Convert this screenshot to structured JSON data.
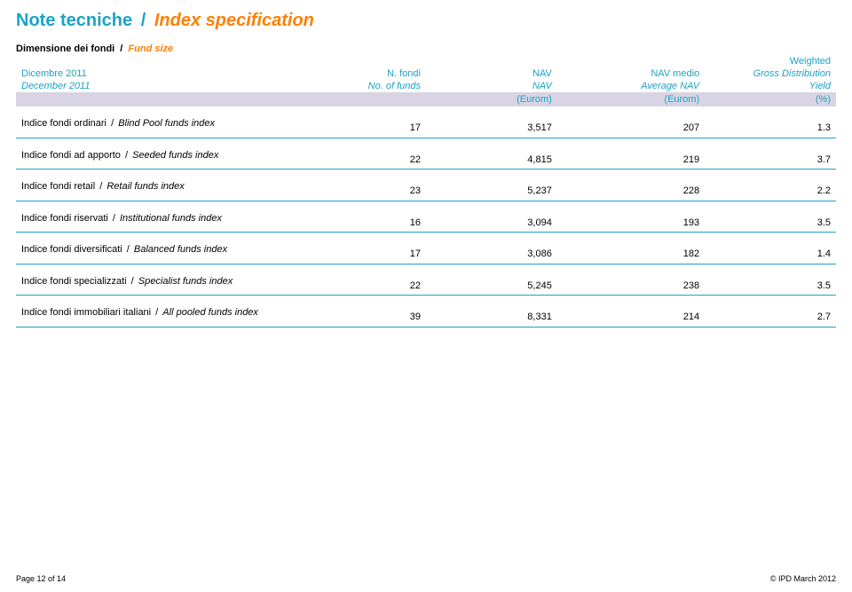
{
  "title": {
    "it": "Note tecniche",
    "sep": "/",
    "en": "Index specification"
  },
  "subheading": {
    "it": "Dimensione dei fondi",
    "sep": "/",
    "en": "Fund size"
  },
  "header": {
    "period": {
      "it": "Dicembre 2011",
      "en": "December 2011"
    },
    "cols": [
      {
        "it": "N. fondi",
        "en": "No. of funds",
        "unit": ""
      },
      {
        "it": "NAV",
        "en": "NAV",
        "unit": "(Eurom)"
      },
      {
        "it": "NAV medio",
        "en": "Average NAV",
        "unit": "(Eurom)"
      },
      {
        "it": "Weighted",
        "en": "Gross Distribution",
        "en2": "Yield",
        "unit": "(%)"
      }
    ]
  },
  "rows": [
    {
      "it": "Indice fondi ordinari",
      "sep": "/",
      "en": "Blind Pool funds index",
      "n": "17",
      "nav": "3,517",
      "avg": "207",
      "yield": "1.3"
    },
    {
      "it": "Indice fondi ad apporto",
      "sep": "/",
      "en": "Seeded funds index",
      "n": "22",
      "nav": "4,815",
      "avg": "219",
      "yield": "3.7"
    },
    {
      "it": "Indice fondi retail",
      "sep": "/",
      "en": "Retail  funds index",
      "n": "23",
      "nav": "5,237",
      "avg": "228",
      "yield": "2.2"
    },
    {
      "it": "Indice fondi riservati",
      "sep": "/",
      "en": "Institutional  funds index",
      "n": "16",
      "nav": "3,094",
      "avg": "193",
      "yield": "3.5"
    },
    {
      "it": "Indice fondi diversificati",
      "sep": "/",
      "en": "Balanced funds index",
      "n": "17",
      "nav": "3,086",
      "avg": "182",
      "yield": "1.4"
    },
    {
      "it": "Indice fondi specializzati",
      "sep": "/",
      "en": "Specialist funds index",
      "n": "22",
      "nav": "5,245",
      "avg": "238",
      "yield": "3.5"
    },
    {
      "it": "Indice fondi immobiliari italiani",
      "sep": "/",
      "en": "All pooled funds index",
      "n": "39",
      "nav": "8,331",
      "avg": "214",
      "yield": "2.7"
    }
  ],
  "footer": {
    "left": "Page 12 of 14",
    "right": "© IPD March 2012"
  },
  "colors": {
    "teal": "#1ba3c6",
    "orange": "#ff7f00",
    "units_bg": "#d8d4e4",
    "text": "#000000",
    "background": "#ffffff"
  }
}
